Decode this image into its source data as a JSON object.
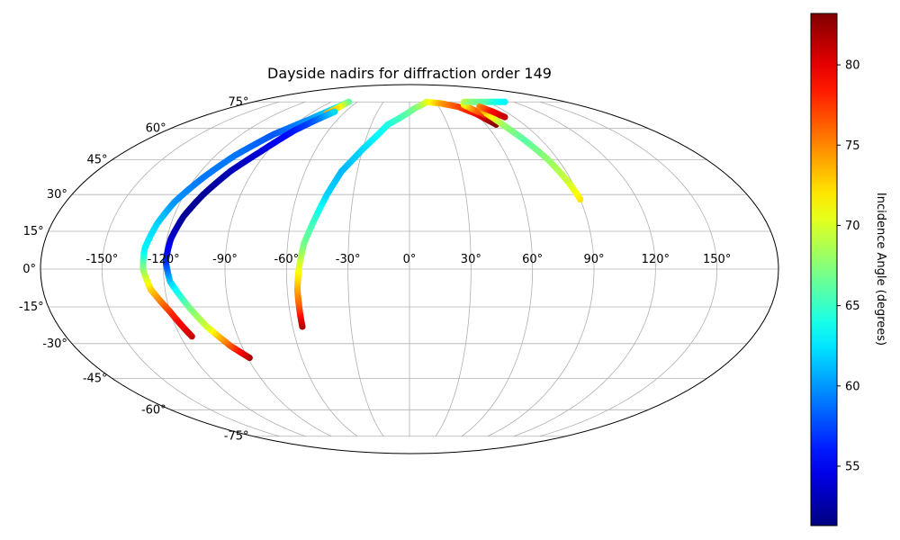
{
  "chart_data": {
    "type": "scatter",
    "projection": "mollweide",
    "title": "Dayside nadirs for diffraction order 149",
    "lon_ticks": [
      -150,
      -120,
      -90,
      -60,
      -30,
      0,
      30,
      60,
      90,
      120,
      150
    ],
    "lon_tick_labels": [
      "-150°",
      "-120°",
      "-90°",
      "-60°",
      "-30°",
      "0°",
      "30°",
      "60°",
      "90°",
      "120°",
      "150°"
    ],
    "lat_ticks": [
      -75,
      -60,
      -45,
      -30,
      -15,
      0,
      15,
      30,
      45,
      60,
      75
    ],
    "lat_tick_labels": [
      "-75°",
      "-60°",
      "-45°",
      "-30°",
      "-15°",
      "0°",
      "15°",
      "30°",
      "45°",
      "60°",
      "75°"
    ],
    "grid": true,
    "colorbar": {
      "label": "Incidence Angle (degrees)",
      "colormap": "jet",
      "range": [
        51.3,
        83.2
      ],
      "ticks": [
        55,
        60,
        65,
        70,
        75,
        80
      ],
      "tick_labels": [
        "55",
        "60",
        "65",
        "70",
        "75",
        "80"
      ]
    },
    "tracks": [
      {
        "points": [
          [
            -114,
            -27,
            81
          ],
          [
            -120,
            -17,
            78
          ],
          [
            -127,
            -8,
            73
          ],
          [
            -130,
            0,
            68
          ],
          [
            -130,
            8,
            63
          ],
          [
            -127,
            18,
            62
          ],
          [
            -123,
            27,
            60
          ],
          [
            -116,
            37,
            59
          ],
          [
            -108,
            47,
            59
          ],
          [
            -97,
            57,
            58
          ],
          [
            -83,
            65,
            60
          ],
          [
            -73,
            72,
            63
          ],
          [
            -70,
            75,
            66
          ],
          [
            -72,
            71,
            72
          ],
          [
            -75,
            68,
            74
          ]
        ]
      },
      {
        "points": [
          [
            -89,
            -36,
            82
          ],
          [
            -96,
            -31,
            77
          ],
          [
            -104,
            -23,
            70
          ],
          [
            -110,
            -15,
            67
          ],
          [
            -117,
            -5,
            62
          ],
          [
            -119,
            3,
            57
          ],
          [
            -118,
            12,
            54
          ],
          [
            -115,
            21,
            52
          ],
          [
            -110,
            30,
            52
          ],
          [
            -103,
            40,
            53
          ],
          [
            -94,
            49,
            54
          ],
          [
            -85,
            59,
            56
          ],
          [
            -78,
            64,
            58
          ],
          [
            -70,
            69,
            62
          ]
        ]
      },
      {
        "points": [
          [
            -55,
            -23,
            82
          ],
          [
            -55,
            -15,
            77
          ],
          [
            -55,
            -8,
            74
          ],
          [
            -54,
            0,
            71
          ],
          [
            -52,
            10,
            67
          ],
          [
            -48,
            20,
            65
          ],
          [
            -44,
            30,
            62
          ],
          [
            -39,
            40,
            61
          ],
          [
            -30,
            50,
            62
          ],
          [
            -17,
            62,
            64
          ],
          [
            5,
            71,
            67
          ],
          [
            20,
            75,
            70
          ],
          [
            35,
            74,
            74
          ],
          [
            50,
            72,
            77
          ],
          [
            60,
            68,
            79
          ],
          [
            68,
            62,
            83
          ]
        ]
      },
      {
        "points": [
          [
            73,
            65,
            80
          ],
          [
            62,
            70,
            76
          ],
          [
            58,
            73,
            72
          ],
          [
            63,
            75,
            69
          ],
          [
            75,
            75,
            67
          ],
          [
            88,
            75,
            66
          ],
          [
            100,
            75,
            64
          ],
          [
            110,
            75,
            63
          ]
        ]
      },
      {
        "points": [
          [
            90,
            28,
            72
          ],
          [
            88,
            35,
            70
          ],
          [
            84,
            45,
            68
          ],
          [
            78,
            55,
            66
          ],
          [
            73,
            62,
            68
          ],
          [
            70,
            68,
            72
          ],
          [
            72,
            72,
            75
          ],
          [
            78,
            69,
            79
          ],
          [
            82,
            66,
            81
          ]
        ]
      }
    ]
  }
}
